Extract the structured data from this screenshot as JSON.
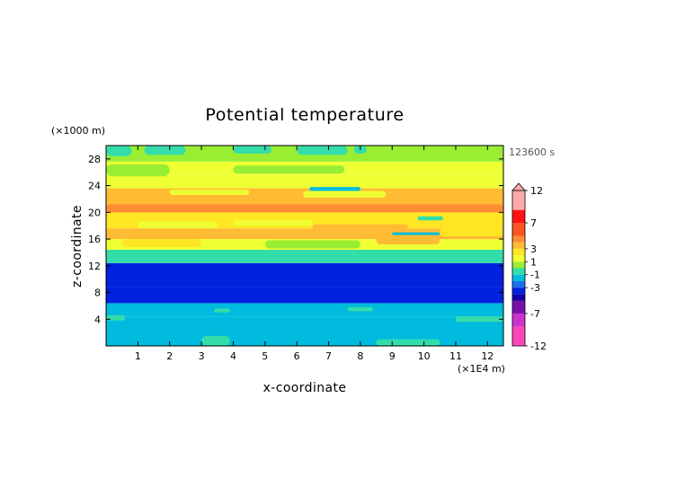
{
  "chart_data": {
    "type": "heatmap",
    "title": "Potential temperature",
    "xlabel": "x-coordinate",
    "ylabel": "z-coordinate",
    "x_unit": "(×1E4 m)",
    "y_unit": "(×1000 m)",
    "time_label": "123600 s",
    "xlim": [
      0,
      12.5
    ],
    "ylim": [
      0,
      30
    ],
    "x_ticks": [
      1,
      2,
      3,
      4,
      5,
      6,
      7,
      8,
      9,
      10,
      11,
      12
    ],
    "y_ticks": [
      4,
      8,
      12,
      16,
      20,
      24,
      28
    ],
    "colorbar": {
      "labels": [
        "12",
        "7",
        "3",
        "1",
        "-1",
        "-3",
        "-7",
        "-12"
      ],
      "label_values": [
        12,
        7,
        3,
        1,
        -1,
        -3,
        -7,
        -12
      ],
      "levels": [
        -12,
        -9,
        -7,
        -5,
        -4,
        -3,
        -2,
        -1,
        0,
        1,
        2,
        3,
        4,
        5,
        7,
        9,
        12
      ],
      "colors": [
        "#ff44bb",
        "#cc33cc",
        "#7711aa",
        "#1100aa",
        "#0022dd",
        "#1e6ef0",
        "#00bbdd",
        "#33ddaa",
        "#99ee33",
        "#eeff33",
        "#ffe622",
        "#ffbb33",
        "#ff8c33",
        "#ff5522",
        "#ff1111",
        "#ffaaaa"
      ]
    },
    "bands": [
      {
        "z": [
          0,
          4.4
        ],
        "value": -1.5
      },
      {
        "z": [
          4.4,
          6.4
        ],
        "value": -1.5
      },
      {
        "z": [
          6.4,
          8.8
        ],
        "value": -3.5
      },
      {
        "z": [
          8.8,
          12.4
        ],
        "value": -3.5
      },
      {
        "z": [
          12.4,
          14.4
        ],
        "value": -0.5
      },
      {
        "z": [
          14.4,
          16.0
        ],
        "value": 1.5
      },
      {
        "z": [
          16.0,
          17.6
        ],
        "value": 3.5
      },
      {
        "z": [
          17.6,
          20.0
        ],
        "value": 2.5
      },
      {
        "z": [
          20.0,
          23.6
        ],
        "value": 3.5
      },
      {
        "z": [
          23.6,
          25.6
        ],
        "value": 1.5
      },
      {
        "z": [
          25.6,
          27.6
        ],
        "value": 1.5
      },
      {
        "z": [
          27.6,
          30.0
        ],
        "value": 0.5
      }
    ],
    "features": [
      {
        "x": [
          0.0,
          0.6
        ],
        "z": [
          3.8,
          4.6
        ],
        "value": -0.5
      },
      {
        "x": [
          3.0,
          3.9
        ],
        "z": [
          0.0,
          1.5
        ],
        "value": -0.5
      },
      {
        "x": [
          8.5,
          10.5
        ],
        "z": [
          0.0,
          1.0
        ],
        "value": -0.5
      },
      {
        "x": [
          11.0,
          12.5
        ],
        "z": [
          3.6,
          4.4
        ],
        "value": -0.5
      },
      {
        "x": [
          3.4,
          3.9
        ],
        "z": [
          5.0,
          5.6
        ],
        "value": -0.5
      },
      {
        "x": [
          7.6,
          8.4
        ],
        "z": [
          5.2,
          5.8
        ],
        "value": -0.5
      },
      {
        "x": [
          0.0,
          12.5
        ],
        "z": [
          12.4,
          14.2
        ],
        "value": -0.5
      },
      {
        "x": [
          5.0,
          8.0
        ],
        "z": [
          14.6,
          15.8
        ],
        "value": 0.5
      },
      {
        "x": [
          0.5,
          3.0
        ],
        "z": [
          14.8,
          16.0
        ],
        "value": 2.5
      },
      {
        "x": [
          8.5,
          10.5
        ],
        "z": [
          15.2,
          16.4
        ],
        "value": 3.5
      },
      {
        "x": [
          9.0,
          10.5
        ],
        "z": [
          16.6,
          17.0
        ],
        "value": -1.5
      },
      {
        "x": [
          10.5,
          12.5
        ],
        "z": [
          16.4,
          17.6
        ],
        "value": 2.5
      },
      {
        "x": [
          1.0,
          3.5
        ],
        "z": [
          17.6,
          18.6
        ],
        "value": 1.5
      },
      {
        "x": [
          4.0,
          6.5
        ],
        "z": [
          18.0,
          18.8
        ],
        "value": 1.5
      },
      {
        "x": [
          6.5,
          9.5
        ],
        "z": [
          17.4,
          18.2
        ],
        "value": 3.5
      },
      {
        "x": [
          9.8,
          10.6
        ],
        "z": [
          18.8,
          19.4
        ],
        "value": -0.5
      },
      {
        "x": [
          0.0,
          12.5
        ],
        "z": [
          20.0,
          21.2
        ],
        "value": 4.5
      },
      {
        "x": [
          2.0,
          4.5
        ],
        "z": [
          22.6,
          23.4
        ],
        "value": 1.5
      },
      {
        "x": [
          6.2,
          8.8
        ],
        "z": [
          22.2,
          23.2
        ],
        "value": 1.5
      },
      {
        "x": [
          6.4,
          8.0
        ],
        "z": [
          23.2,
          23.8
        ],
        "value": -1.5
      },
      {
        "x": [
          9.0,
          11.5
        ],
        "z": [
          23.8,
          24.6
        ],
        "value": 1.5
      },
      {
        "x": [
          0.0,
          2.0
        ],
        "z": [
          25.4,
          27.2
        ],
        "value": 0.5
      },
      {
        "x": [
          4.0,
          7.5
        ],
        "z": [
          25.8,
          27.0
        ],
        "value": 0.5
      },
      {
        "x": [
          0.0,
          0.8
        ],
        "z": [
          28.4,
          30.0
        ],
        "value": -0.5
      },
      {
        "x": [
          1.2,
          2.5
        ],
        "z": [
          28.6,
          30.0
        ],
        "value": -0.5
      },
      {
        "x": [
          4.0,
          5.2
        ],
        "z": [
          28.8,
          30.0
        ],
        "value": -0.5
      },
      {
        "x": [
          6.0,
          7.6
        ],
        "z": [
          28.6,
          30.0
        ],
        "value": -0.5
      },
      {
        "x": [
          7.8,
          8.2
        ],
        "z": [
          28.8,
          30.0
        ],
        "value": -0.5
      }
    ]
  }
}
